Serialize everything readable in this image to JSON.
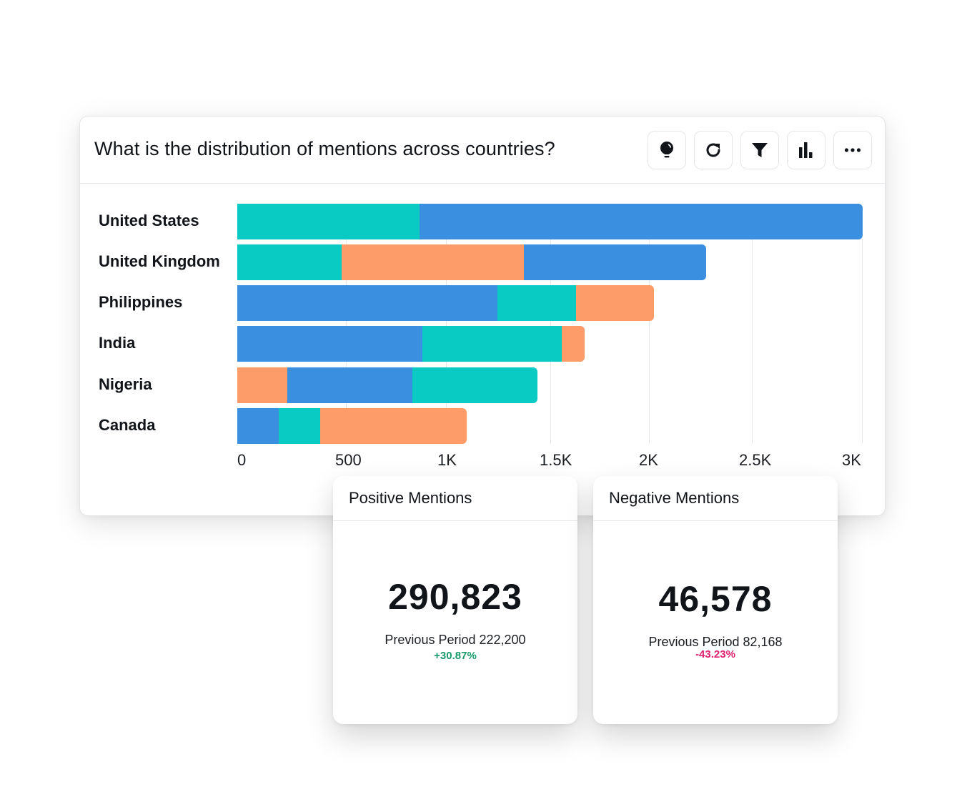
{
  "widget": {
    "title": "What is the distribution of mentions across countries?",
    "toolbar": [
      {
        "icon": "lightbulb-icon",
        "label": "Insights"
      },
      {
        "icon": "refresh-icon",
        "label": "Refresh"
      },
      {
        "icon": "filter-icon",
        "label": "Filter"
      },
      {
        "icon": "bar-chart-icon",
        "label": "Chart type"
      },
      {
        "icon": "more-icon",
        "label": "More options"
      }
    ]
  },
  "colors": {
    "blue": "#3a8fe0",
    "teal": "#0acbc3",
    "orange": "#fd9c68",
    "positive": "#1a9b6c",
    "negative": "#e0206d"
  },
  "chart_data": {
    "type": "bar",
    "orientation": "horizontal",
    "stacked": true,
    "title": "What is the distribution of mentions across countries?",
    "xlabel": "",
    "ylabel": "",
    "xlim": [
      0,
      3000
    ],
    "x_ticks": [
      "0",
      "500",
      "1K",
      "1.5K",
      "2K",
      "2.5K",
      "3K"
    ],
    "grid": true,
    "legend": null,
    "categories": [
      "United States",
      "United Kingdom",
      "Philippines",
      "India",
      "Nigeria",
      "Canada"
    ],
    "segment_colors": [
      "#0acbc3",
      "#3a8fe0",
      "#fd9c68"
    ],
    "rows": [
      {
        "label": "United States",
        "segments": [
          {
            "color": "teal",
            "value": 874
          },
          {
            "color": "blue",
            "value": 2126
          }
        ]
      },
      {
        "label": "United Kingdom",
        "segments": [
          {
            "color": "teal",
            "value": 500
          },
          {
            "color": "orange",
            "value": 874
          },
          {
            "color": "blue",
            "value": 874
          }
        ]
      },
      {
        "label": "Philippines",
        "segments": [
          {
            "color": "blue",
            "value": 1248
          },
          {
            "color": "teal",
            "value": 377
          },
          {
            "color": "orange",
            "value": 374
          }
        ]
      },
      {
        "label": "India",
        "segments": [
          {
            "color": "blue",
            "value": 888
          },
          {
            "color": "teal",
            "value": 669
          },
          {
            "color": "orange",
            "value": 110
          }
        ]
      },
      {
        "label": "Nigeria",
        "segments": [
          {
            "color": "orange",
            "value": 240
          },
          {
            "color": "blue",
            "value": 600
          },
          {
            "color": "teal",
            "value": 600
          }
        ]
      },
      {
        "label": "Canada",
        "segments": [
          {
            "color": "blue",
            "value": 199
          },
          {
            "color": "teal",
            "value": 199
          },
          {
            "color": "orange",
            "value": 703
          }
        ]
      }
    ],
    "totals": [
      3000,
      2248,
      1999,
      1667,
      1440,
      1101
    ]
  },
  "kpis": {
    "positive": {
      "title": "Positive Mentions",
      "value": "290,823",
      "previous": "Previous Period 222,200",
      "change": "+30.87%"
    },
    "negative": {
      "title": "Negative Mentions",
      "value": "46,578",
      "previous": "Previous Period 82,168",
      "change": "-43.23%"
    }
  }
}
